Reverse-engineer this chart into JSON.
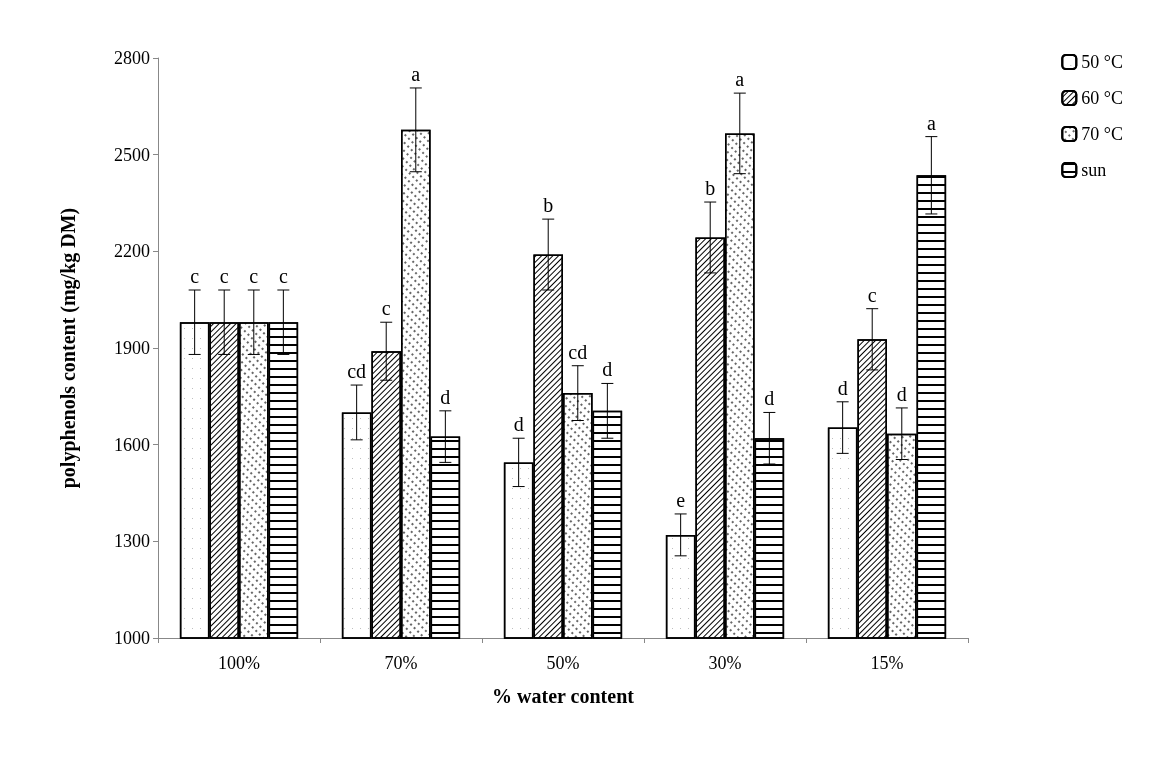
{
  "chart_data": {
    "type": "bar",
    "xlabel": "% water content",
    "ylabel": "polyphenols content (mg/kg DM)",
    "categories": [
      "100%",
      "70%",
      "50%",
      "30%",
      "15%"
    ],
    "series": [
      {
        "name": "50 °C",
        "color": "#ffffff",
        "values": [
          1980,
          1700,
          1545,
          1320,
          1653
        ],
        "errors": [
          100,
          85,
          75,
          65,
          80
        ],
        "value_labels": [
          "c",
          "cd",
          "d",
          "e",
          "d"
        ]
      },
      {
        "name": "60 °C",
        "color": "#ffffff",
        "values": [
          1980,
          1890,
          2190,
          2243,
          1927
        ],
        "errors": [
          100,
          90,
          110,
          110,
          95
        ],
        "value_labels": [
          "c",
          "c",
          "b",
          "b",
          "c"
        ]
      },
      {
        "name": "70 °C",
        "color": "#ffffff",
        "values": [
          1980,
          2577,
          1760,
          2566,
          1634
        ],
        "errors": [
          100,
          130,
          85,
          125,
          80
        ],
        "value_labels": [
          "c",
          "a",
          "cd",
          "a",
          "d"
        ]
      },
      {
        "name": "sun",
        "color": "#ffffff",
        "values": [
          1980,
          1625,
          1705,
          1620,
          2436
        ],
        "errors": [
          100,
          80,
          85,
          80,
          120
        ],
        "value_labels": [
          "c",
          "d",
          "d",
          "d",
          "a"
        ]
      }
    ],
    "ylim": [
      1000,
      2800
    ],
    "yticks": [
      1000,
      1300,
      1600,
      1900,
      2200,
      2500,
      2800
    ],
    "grid": false,
    "legend": "top right"
  }
}
